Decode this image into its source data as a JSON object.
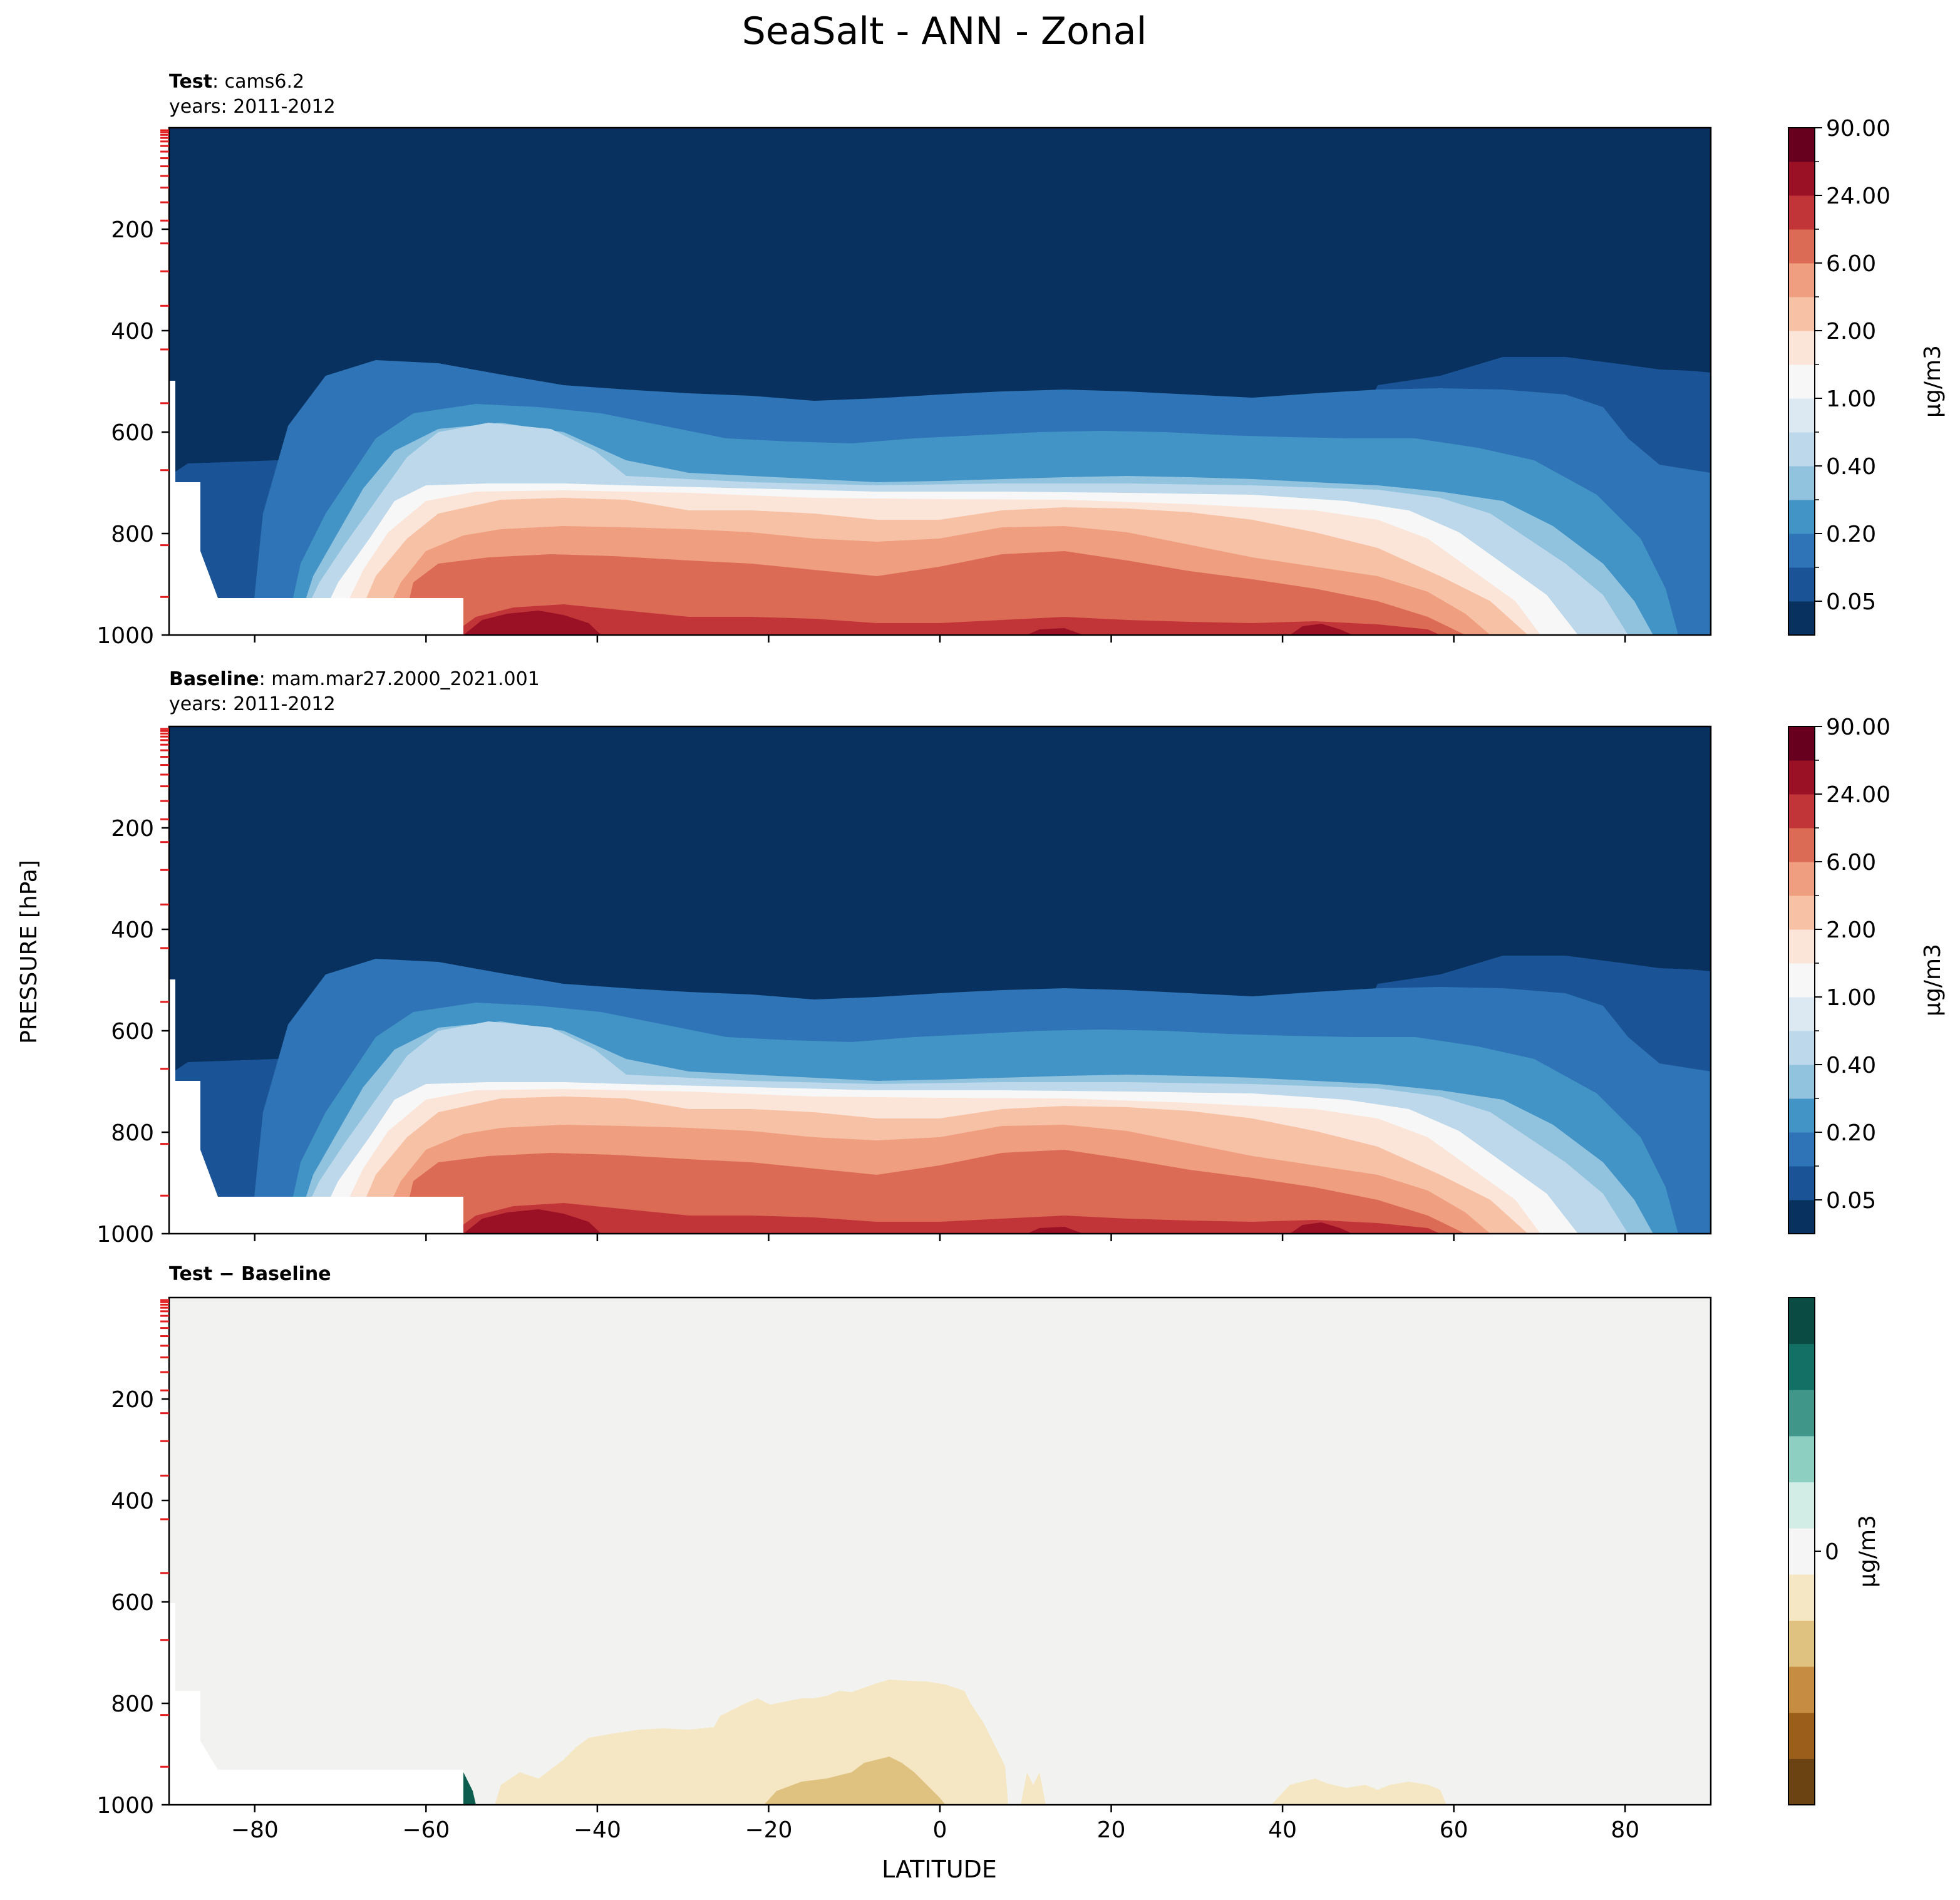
{
  "figure_title": "SeaSalt - ANN - Zonal",
  "ylabel": "PRESSURE [hPa]",
  "xlabel": "LATITUDE",
  "chart_data": [
    {
      "type": "contour",
      "panel": "test",
      "title_bold": "Test",
      "title_rest": ": cams6.2",
      "subtitle": "years: 2011-2012",
      "xlim": [
        -90,
        90
      ],
      "ylim": [
        0,
        1000
      ],
      "y_inverted": true,
      "xticks": [
        -80,
        -60,
        -40,
        -20,
        0,
        20,
        40,
        60,
        80
      ],
      "yticks": [
        200,
        400,
        600,
        800,
        1000
      ],
      "colorbar": {
        "label": "μg/m3",
        "labels": [
          "0.05",
          "0.20",
          "0.40",
          "1.00",
          "2.00",
          "6.00",
          "24.00",
          "90.00"
        ],
        "scale": "RdBu_r",
        "levels": 15
      }
    },
    {
      "type": "contour",
      "panel": "baseline",
      "title_bold": "Baseline",
      "title_rest": ": mam.mar27.2000_2021.001",
      "subtitle": "years: 2011-2012",
      "xlim": [
        -90,
        90
      ],
      "ylim": [
        0,
        1000
      ],
      "y_inverted": true,
      "xticks": [
        -80,
        -60,
        -40,
        -20,
        0,
        20,
        40,
        60,
        80
      ],
      "yticks": [
        200,
        400,
        600,
        800,
        1000
      ],
      "colorbar": {
        "label": "μg/m3",
        "labels": [
          "0.05",
          "0.20",
          "0.40",
          "1.00",
          "2.00",
          "6.00",
          "24.00",
          "90.00"
        ],
        "scale": "RdBu_r",
        "levels": 15
      }
    },
    {
      "type": "contour",
      "panel": "difference",
      "title_bold": "Test − Baseline",
      "xlim": [
        -90,
        90
      ],
      "ylim": [
        0,
        1000
      ],
      "y_inverted": true,
      "xticks": [
        -80,
        -60,
        -40,
        -20,
        0,
        20,
        40,
        60,
        80
      ],
      "xtick_labels": [
        "−80",
        "−60",
        "−40",
        "−20",
        "0",
        "20",
        "40",
        "60",
        "80"
      ],
      "yticks": [
        200,
        400,
        600,
        800,
        1000
      ],
      "colorbar": {
        "label": "μg/m3",
        "labels": [
          "0"
        ],
        "scale": "BrBG",
        "levels": 11
      }
    }
  ]
}
